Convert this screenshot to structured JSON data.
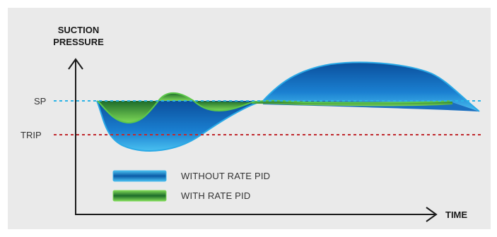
{
  "axes": {
    "y_title_line1": "SUCTION",
    "y_title_line2": "PRESSURE",
    "x_title": "TIME"
  },
  "reference_lines": [
    {
      "label": "SP",
      "color": "#2bb3e6",
      "style": "dashed"
    },
    {
      "label": "TRIP",
      "color": "#c0282d",
      "style": "dashed"
    }
  ],
  "legend": [
    {
      "label": "WITHOUT RATE PID",
      "color": "#1a8ed6"
    },
    {
      "label": "WITH RATE PID",
      "color": "#2e9e3a"
    }
  ],
  "colors": {
    "background": "#eaeaea",
    "axis": "#1a1a1a",
    "without_fill_light": "#3fb6ec",
    "without_fill_dark": "#0b4f9c",
    "with_fill_light": "#7ed957",
    "with_fill_dark": "#1d6b2a"
  }
}
